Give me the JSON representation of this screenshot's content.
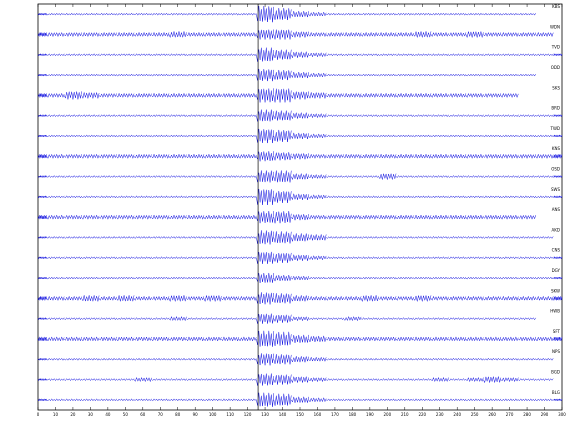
{
  "chart_data": {
    "type": "seismogram",
    "x": [
      0,
      10,
      20,
      30,
      40,
      50,
      60,
      70,
      80,
      90,
      100,
      110,
      120,
      130,
      140,
      150,
      160,
      170,
      180,
      190,
      200,
      210,
      220,
      230,
      240,
      250,
      260,
      270,
      280,
      290,
      300
    ],
    "xlim": [
      0,
      300
    ],
    "xticks": [
      0,
      10,
      20,
      30,
      40,
      50,
      60,
      70,
      80,
      90,
      100,
      110,
      120,
      130,
      140,
      150,
      160,
      170,
      180,
      190,
      200,
      210,
      220,
      230,
      240,
      250,
      260,
      270,
      280,
      290,
      300
    ],
    "ylim": [
      -10,
      10
    ],
    "marker_x": 126,
    "color": "#1010e0",
    "series": [
      {
        "name": "KBS",
        "values": [
          1,
          1,
          1,
          1,
          1,
          1,
          1,
          1,
          1,
          1,
          1,
          1,
          1,
          8,
          6,
          3,
          2,
          1,
          1,
          1,
          1,
          1,
          1,
          1,
          1,
          1,
          1,
          1,
          1,
          null,
          null
        ]
      },
      {
        "name": "WDN",
        "values": [
          2,
          2,
          2,
          2,
          2,
          2,
          2,
          2,
          3,
          2,
          2,
          2,
          2,
          5,
          5,
          3,
          2,
          2,
          2,
          2,
          2,
          2,
          3,
          2,
          2,
          3,
          2,
          2,
          2,
          2,
          null
        ]
      },
      {
        "name": "TVD",
        "values": [
          1,
          1,
          1,
          1,
          1,
          1,
          1,
          1,
          1,
          1,
          1,
          1,
          1,
          7,
          5,
          3,
          2,
          1,
          1,
          1,
          1,
          1,
          1,
          1,
          1,
          1,
          1,
          1,
          1,
          1,
          1
        ]
      },
      {
        "name": "ODD",
        "values": [
          1,
          1,
          1,
          1,
          1,
          1,
          1,
          1,
          1,
          1,
          1,
          1,
          1,
          6,
          5,
          3,
          2,
          1,
          1,
          1,
          1,
          1,
          1,
          1,
          1,
          1,
          1,
          1,
          1,
          null,
          null
        ]
      },
      {
        "name": "SKS",
        "values": [
          2,
          2,
          4,
          3,
          2,
          2,
          2,
          2,
          2,
          2,
          2,
          2,
          2,
          7,
          7,
          4,
          3,
          2,
          2,
          2,
          2,
          2,
          2,
          2,
          2,
          2,
          2,
          2,
          null,
          null,
          null
        ]
      },
      {
        "name": "BRD",
        "values": [
          1,
          1,
          1,
          1,
          1,
          1,
          1,
          1,
          1,
          1,
          1,
          1,
          1,
          6,
          5,
          3,
          2,
          1,
          1,
          1,
          1,
          1,
          1,
          1,
          1,
          1,
          1,
          1,
          1,
          1,
          1
        ]
      },
      {
        "name": "TWD",
        "values": [
          1,
          1,
          1,
          1,
          1,
          1,
          1,
          1,
          1,
          1,
          1,
          1,
          1,
          7,
          6,
          3,
          2,
          1,
          1,
          1,
          1,
          1,
          1,
          1,
          1,
          1,
          1,
          1,
          1,
          1,
          1
        ]
      },
      {
        "name": "KNS",
        "values": [
          2,
          2,
          2,
          2,
          2,
          2,
          2,
          2,
          2,
          2,
          2,
          2,
          2,
          5,
          4,
          3,
          2,
          2,
          2,
          2,
          2,
          2,
          2,
          2,
          2,
          2,
          2,
          2,
          2,
          2,
          2
        ]
      },
      {
        "name": "OSD",
        "values": [
          1,
          1,
          1,
          1,
          1,
          1,
          1,
          1,
          1,
          1,
          1,
          1,
          1,
          6,
          6,
          3,
          2,
          1,
          1,
          1,
          3,
          1,
          1,
          1,
          1,
          1,
          1,
          1,
          1,
          1,
          1
        ]
      },
      {
        "name": "SWS",
        "values": [
          1,
          1,
          1,
          1,
          1,
          1,
          1,
          1,
          1,
          1,
          1,
          1,
          1,
          8,
          6,
          3,
          2,
          1,
          1,
          1,
          1,
          1,
          1,
          1,
          1,
          1,
          1,
          1,
          1,
          1,
          1
        ]
      },
      {
        "name": "ANS",
        "values": [
          2,
          2,
          2,
          2,
          2,
          2,
          2,
          2,
          2,
          2,
          2,
          2,
          2,
          6,
          6,
          3,
          2,
          2,
          2,
          2,
          2,
          2,
          2,
          2,
          2,
          2,
          2,
          2,
          2,
          null,
          null
        ]
      },
      {
        "name": "AKD",
        "values": [
          1,
          1,
          1,
          1,
          1,
          1,
          1,
          1,
          1,
          1,
          1,
          1,
          1,
          7,
          6,
          4,
          3,
          1,
          1,
          1,
          1,
          1,
          1,
          1,
          1,
          1,
          1,
          1,
          1,
          1,
          null
        ]
      },
      {
        "name": "CNS",
        "values": [
          1,
          1,
          1,
          1,
          1,
          1,
          1,
          1,
          1,
          1,
          1,
          1,
          1,
          6,
          5,
          3,
          2,
          1,
          1,
          1,
          1,
          1,
          1,
          1,
          1,
          1,
          1,
          1,
          1,
          1,
          1
        ]
      },
      {
        "name": "DGY",
        "values": [
          1,
          1,
          1,
          1,
          1,
          1,
          1,
          1,
          1,
          1,
          1,
          1,
          1,
          5,
          3,
          2,
          1,
          1,
          1,
          1,
          1,
          1,
          1,
          1,
          1,
          1,
          1,
          1,
          1,
          1,
          1
        ]
      },
      {
        "name": "SKW",
        "values": [
          2,
          2,
          2,
          3,
          2,
          3,
          2,
          2,
          3,
          2,
          3,
          2,
          2,
          6,
          5,
          3,
          2,
          2,
          2,
          3,
          2,
          2,
          3,
          2,
          2,
          2,
          2,
          2,
          2,
          2,
          2
        ]
      },
      {
        "name": "HWB",
        "values": [
          1,
          1,
          1,
          1,
          1,
          1,
          1,
          1,
          2,
          1,
          1,
          1,
          1,
          5,
          4,
          2,
          1,
          1,
          2,
          1,
          1,
          1,
          1,
          1,
          1,
          1,
          1,
          1,
          1,
          null,
          null
        ]
      },
      {
        "name": "SFT",
        "values": [
          2,
          2,
          2,
          2,
          2,
          2,
          2,
          2,
          2,
          2,
          2,
          2,
          2,
          8,
          7,
          4,
          3,
          2,
          2,
          2,
          2,
          2,
          2,
          2,
          2,
          2,
          2,
          2,
          2,
          2,
          2
        ]
      },
      {
        "name": "NPS",
        "values": [
          1,
          1,
          1,
          1,
          1,
          1,
          1,
          1,
          1,
          1,
          1,
          1,
          1,
          6,
          5,
          3,
          2,
          1,
          1,
          1,
          1,
          1,
          1,
          1,
          1,
          1,
          1,
          1,
          1,
          1,
          null
        ]
      },
      {
        "name": "BGD",
        "values": [
          1,
          1,
          1,
          1,
          1,
          1,
          2,
          1,
          1,
          1,
          1,
          1,
          1,
          6,
          5,
          3,
          2,
          1,
          1,
          1,
          1,
          1,
          1,
          2,
          1,
          2,
          3,
          2,
          1,
          1,
          null
        ]
      },
      {
        "name": "BLG",
        "values": [
          1,
          1,
          1,
          1,
          1,
          1,
          1,
          1,
          1,
          1,
          1,
          1,
          1,
          7,
          6,
          3,
          2,
          1,
          1,
          1,
          1,
          1,
          1,
          1,
          1,
          1,
          1,
          1,
          1,
          1,
          1
        ]
      }
    ]
  }
}
